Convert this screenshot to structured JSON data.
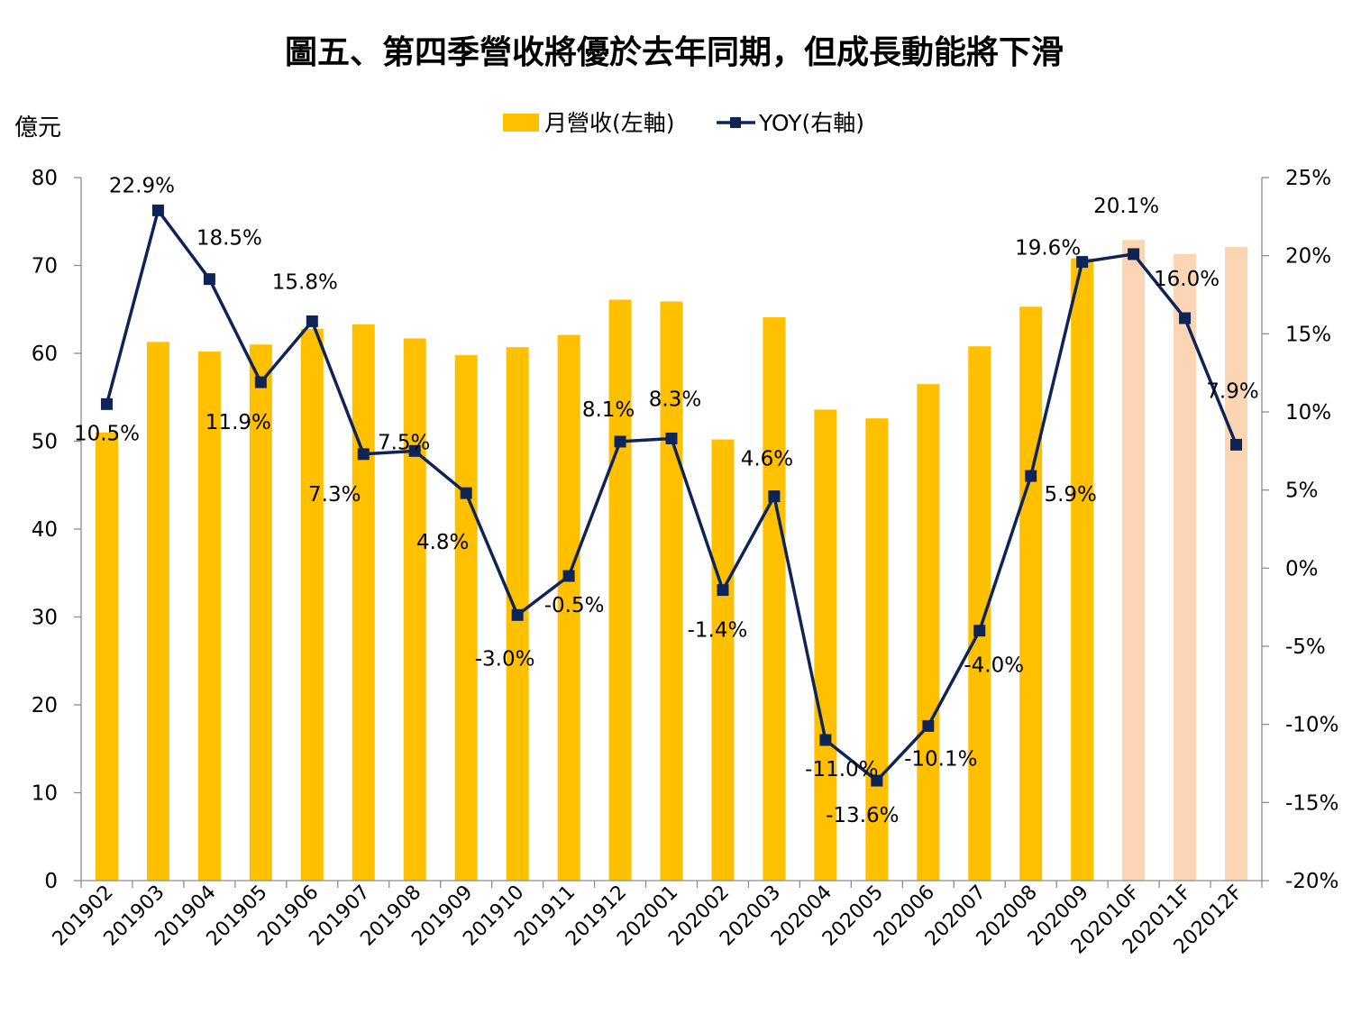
{
  "chart_data": {
    "type": "bar",
    "title": "圖五、第四季營收將優於去年同期，但成長動能將下滑",
    "ylabel_left": "億元",
    "categories": [
      "201902",
      "201903",
      "201904",
      "201905",
      "201906",
      "201907",
      "201908",
      "201909",
      "201910",
      "201911",
      "201912",
      "202001",
      "202002",
      "202003",
      "202004",
      "202005",
      "202006",
      "202007",
      "202008",
      "202009",
      "202010F",
      "202011F",
      "202012F"
    ],
    "left_axis": {
      "min": 0,
      "max": 80,
      "ticks": [
        "0",
        "10",
        "20",
        "30",
        "40",
        "50",
        "60",
        "70",
        "80"
      ]
    },
    "right_axis": {
      "min": -20,
      "max": 25,
      "ticks": [
        "-20%",
        "-15%",
        "-10%",
        "-5%",
        "0%",
        "5%",
        "10%",
        "15%",
        "20%",
        "25%"
      ]
    },
    "series": [
      {
        "name": "月營收(左軸)",
        "type": "bar",
        "axis": "left",
        "color": "#FFC000",
        "forecast_color": "#FCD5B4",
        "values": [
          51.0,
          61.3,
          60.2,
          61.0,
          62.8,
          63.3,
          61.7,
          59.8,
          60.7,
          62.1,
          66.1,
          65.9,
          50.2,
          64.1,
          53.6,
          52.6,
          56.5,
          60.8,
          65.3,
          70.8,
          72.9,
          71.3,
          72.1
        ]
      },
      {
        "name": "YOY(右軸)",
        "type": "line",
        "axis": "right",
        "color": "#0F2456",
        "values": [
          10.5,
          22.9,
          18.5,
          11.9,
          15.8,
          7.3,
          7.5,
          4.8,
          -3.0,
          -0.5,
          8.1,
          8.3,
          -1.4,
          4.6,
          -11.0,
          -13.6,
          -10.1,
          -4.0,
          5.9,
          19.6,
          20.1,
          16.0,
          7.9
        ],
        "labels": [
          "10.5%",
          "22.9%",
          "18.5%",
          "11.9%",
          "15.8%",
          "7.3%",
          "7.5%",
          "4.8%",
          "-3.0%",
          "-0.5%",
          "8.1%",
          "8.3%",
          "-1.4%",
          "4.6%",
          "-11.0%",
          "-13.6%",
          "-10.1%",
          "-4.0%",
          "5.9%",
          "19.6%",
          "20.1%",
          "16.0%",
          "7.9%"
        ]
      }
    ],
    "forecast_categories": [
      "202010F",
      "202011F",
      "202012F"
    ],
    "grid": false,
    "legend_position": "top-center"
  }
}
